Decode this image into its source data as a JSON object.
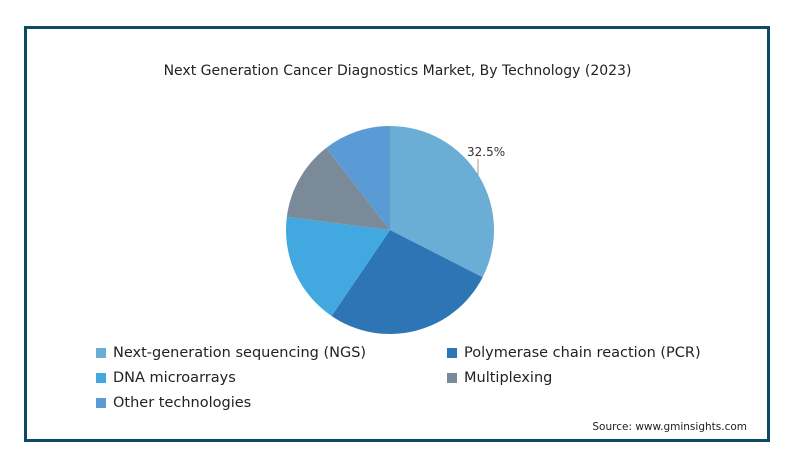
{
  "chart_data": {
    "type": "pie",
    "title": "Next Generation Cancer Diagnostics Market, By Technology (2023)",
    "slices": [
      {
        "name": "Next-generation sequencing (NGS)",
        "value": 32.5,
        "color": "#6aaed6",
        "label": "32.5%"
      },
      {
        "name": "Polymerase chain reaction (PCR)",
        "value": 27,
        "color": "#2e75b6"
      },
      {
        "name": "DNA microarrays",
        "value": 17.5,
        "color": "#41a8e0"
      },
      {
        "name": "Multiplexing",
        "value": 12.5,
        "color": "#7b8a98"
      },
      {
        "name": "Other technologies",
        "value": 10.5,
        "color": "#5b9bd5"
      }
    ],
    "legend_position": "bottom",
    "source": "Source: www.gminsights.com"
  }
}
